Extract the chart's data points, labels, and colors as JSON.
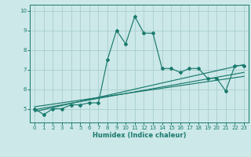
{
  "title": "",
  "xlabel": "Humidex (Indice chaleur)",
  "ylabel": "",
  "background_color": "#cce8e8",
  "grid_color": "#aacece",
  "line_color": "#1a7a6e",
  "spine_color": "#1a7a6e",
  "xlim": [
    -0.5,
    23.5
  ],
  "ylim": [
    4.3,
    10.3
  ],
  "xticks": [
    0,
    1,
    2,
    3,
    4,
    5,
    6,
    7,
    8,
    9,
    10,
    11,
    12,
    13,
    14,
    15,
    16,
    17,
    18,
    19,
    20,
    21,
    22,
    23
  ],
  "yticks": [
    5,
    6,
    7,
    8,
    9,
    10
  ],
  "main_line": {
    "x": [
      0,
      1,
      2,
      3,
      4,
      5,
      6,
      7,
      8,
      9,
      10,
      11,
      12,
      13,
      14,
      15,
      16,
      17,
      18,
      19,
      20,
      21,
      22,
      23
    ],
    "y": [
      5.0,
      4.7,
      5.0,
      5.0,
      5.2,
      5.2,
      5.3,
      5.3,
      7.5,
      9.0,
      8.3,
      9.7,
      8.85,
      8.85,
      7.05,
      7.05,
      6.85,
      7.05,
      7.05,
      6.55,
      6.55,
      5.9,
      7.2,
      7.2
    ]
  },
  "regression_lines": [
    {
      "x": [
        0,
        23
      ],
      "y": [
        4.85,
        7.25
      ]
    },
    {
      "x": [
        0,
        23
      ],
      "y": [
        4.95,
        6.85
      ]
    },
    {
      "x": [
        0,
        23
      ],
      "y": [
        5.1,
        6.65
      ]
    }
  ],
  "xlabel_fontsize": 6.0,
  "tick_fontsize": 5.0
}
